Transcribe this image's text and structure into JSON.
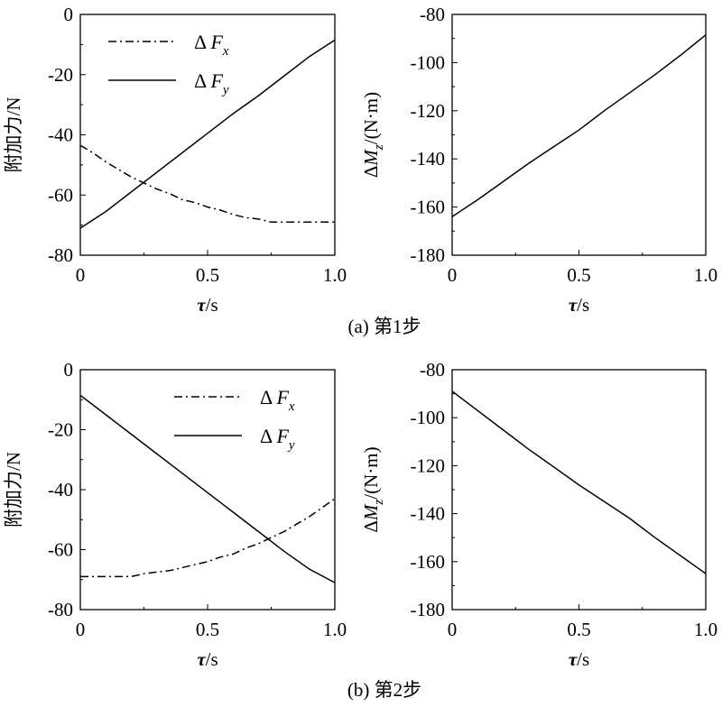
{
  "chart_data": [
    {
      "type": "line",
      "panel": "a-left",
      "ylabel": "附加力/N",
      "xlabel": "τ/s",
      "xlim": [
        0,
        1.0
      ],
      "ylim": [
        -80,
        0
      ],
      "xticks": [
        "0",
        "0.5",
        "1.0"
      ],
      "yticks": [
        "0",
        "-20",
        "-40",
        "-60",
        "-80"
      ],
      "legend_position": "top-left",
      "series": [
        {
          "name": "ΔF",
          "subscript": "x",
          "style": "dashdot",
          "x": [
            0,
            0.05,
            0.1,
            0.15,
            0.2,
            0.25,
            0.3,
            0.35,
            0.4,
            0.45,
            0.5,
            0.55,
            0.6,
            0.65,
            0.7,
            0.75,
            0.8,
            0.85,
            0.9,
            0.95,
            1.0
          ],
          "y": [
            -43.5,
            -46,
            -49,
            -51.5,
            -54,
            -56,
            -58,
            -59.5,
            -61.5,
            -62.5,
            -64,
            -65,
            -66.5,
            -67.5,
            -68,
            -69,
            -69,
            -69,
            -69,
            -69,
            -69
          ]
        },
        {
          "name": "ΔF",
          "subscript": "y",
          "style": "solid",
          "x": [
            0,
            0.1,
            0.2,
            0.3,
            0.4,
            0.5,
            0.6,
            0.7,
            0.8,
            0.9,
            1.0
          ],
          "y": [
            -71,
            -65.5,
            -59,
            -52.5,
            -46,
            -39.5,
            -33,
            -27,
            -20.5,
            -14,
            -8.5
          ]
        }
      ]
    },
    {
      "type": "line",
      "panel": "a-right",
      "ylabel_main": "ΔM",
      "ylabel_sub": "z",
      "ylabel_unit": "/(N·m)",
      "xlabel": "τ/s",
      "xlim": [
        0,
        1.0
      ],
      "ylim": [
        -180,
        -80
      ],
      "xticks": [
        "0",
        "0.5",
        "1.0"
      ],
      "yticks": [
        "-80",
        "-100",
        "-120",
        "-140",
        "-160",
        "-180"
      ],
      "series": [
        {
          "name": "",
          "style": "solid",
          "x": [
            0,
            0.1,
            0.2,
            0.3,
            0.4,
            0.5,
            0.6,
            0.7,
            0.8,
            0.9,
            1.0
          ],
          "y": [
            -164,
            -157,
            -149.5,
            -142,
            -135,
            -128,
            -120,
            -112.5,
            -105,
            -97,
            -88.5
          ]
        }
      ]
    },
    {
      "type": "line",
      "panel": "b-left",
      "ylabel": "附加力/N",
      "xlabel": "τ/s",
      "xlim": [
        0,
        1.0
      ],
      "ylim": [
        -80,
        0
      ],
      "xticks": [
        "0",
        "0.5",
        "1.0"
      ],
      "yticks": [
        "0",
        "-20",
        "-40",
        "-60",
        "-80"
      ],
      "legend_position": "top-right",
      "series": [
        {
          "name": "ΔF",
          "subscript": "x",
          "style": "dashdot",
          "x": [
            0,
            0.05,
            0.1,
            0.15,
            0.2,
            0.25,
            0.3,
            0.35,
            0.4,
            0.45,
            0.5,
            0.55,
            0.6,
            0.65,
            0.7,
            0.75,
            0.8,
            0.85,
            0.9,
            0.95,
            1.0
          ],
          "y": [
            -69,
            -69,
            -69,
            -69,
            -69,
            -68,
            -67.5,
            -67,
            -66,
            -65,
            -64,
            -62.5,
            -61.5,
            -59.5,
            -58,
            -56,
            -54,
            -51.5,
            -49,
            -46,
            -43
          ]
        },
        {
          "name": "ΔF",
          "subscript": "y",
          "style": "solid",
          "x": [
            0,
            0.1,
            0.2,
            0.3,
            0.4,
            0.5,
            0.6,
            0.7,
            0.8,
            0.9,
            1.0
          ],
          "y": [
            -8.5,
            -15,
            -21.5,
            -28,
            -34.5,
            -41,
            -47.5,
            -54,
            -60.5,
            -66.5,
            -71
          ]
        }
      ]
    },
    {
      "type": "line",
      "panel": "b-right",
      "ylabel_main": "ΔM",
      "ylabel_sub": "z",
      "ylabel_unit": "/(N·m)",
      "xlabel": "τ/s",
      "xlim": [
        0,
        1.0
      ],
      "ylim": [
        -180,
        -80
      ],
      "xticks": [
        "0",
        "0.5",
        "1.0"
      ],
      "yticks": [
        "-80",
        "-100",
        "-120",
        "-140",
        "-160",
        "-180"
      ],
      "series": [
        {
          "name": "",
          "style": "solid",
          "x": [
            0,
            0.1,
            0.2,
            0.3,
            0.4,
            0.5,
            0.6,
            0.7,
            0.8,
            0.9,
            1.0
          ],
          "y": [
            -89,
            -97,
            -105,
            -113,
            -120.5,
            -128,
            -135,
            -142,
            -150,
            -157.5,
            -165
          ]
        }
      ]
    }
  ],
  "captions": {
    "a": "(a) 第1步",
    "b": "(b) 第2步"
  }
}
